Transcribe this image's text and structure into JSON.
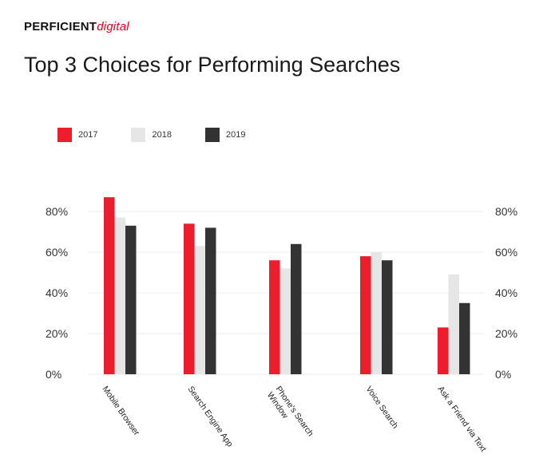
{
  "logo": {
    "bold": "PERFICIENT",
    "accent": "digital"
  },
  "title": "Top 3 Choices for Performing Searches",
  "colors": {
    "2017": "#ee1d2b",
    "2018": "#e6e6e6",
    "2019": "#333333"
  },
  "chart_data": {
    "type": "bar",
    "title": "Top 3 Choices for Performing Searches",
    "categories": [
      "Mobile Browser",
      "Search Engine App",
      "Phone's Search Window",
      "Voice Search",
      "Ask a Friend via Text"
    ],
    "category_lines": [
      [
        "Mobile Browser"
      ],
      [
        "Search Engine App"
      ],
      [
        "Phone's Search",
        "Window"
      ],
      [
        "Voice Search"
      ],
      [
        "Ask a Friend via Text"
      ]
    ],
    "series": [
      {
        "name": "2017",
        "color": "#ee1d2b",
        "values": [
          87,
          74,
          56,
          58,
          23
        ]
      },
      {
        "name": "2018",
        "color": "#e6e6e6",
        "values": [
          77,
          63,
          52,
          60,
          49
        ]
      },
      {
        "name": "2019",
        "color": "#333333",
        "values": [
          73,
          72,
          64,
          56,
          35
        ]
      }
    ],
    "yticks": [
      "0%",
      "20%",
      "40%",
      "60%",
      "80%"
    ],
    "ylim": [
      0,
      85
    ],
    "xlabel": "",
    "ylabel": "",
    "legend": "top-left",
    "grid": true
  }
}
